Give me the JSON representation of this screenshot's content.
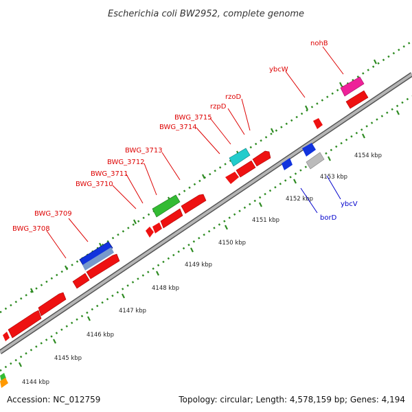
{
  "title": "Escherichia coli BW2952, complete genome",
  "footer": {
    "accession": "Accession: NC_012759",
    "summary": "Topology: circular; Length: 4,578,159 bp; Genes: 4,194"
  },
  "colors": {
    "label_forward": "#dd0000",
    "label_reverse": "#0000cc",
    "backbone": "#9a9a9a",
    "tick": "#2e8b22"
  },
  "kbp_labels": [
    "4144 kbp",
    "4145 kbp",
    "4146 kbp",
    "4147 kbp",
    "4148 kbp",
    "4149 kbp",
    "4150 kbp",
    "4151 kbp",
    "4152 kbp",
    "4153 kbp",
    "4154 kbp"
  ],
  "gene_labels": [
    {
      "text": "BWG_3708",
      "color": "#dd0000"
    },
    {
      "text": "BWG_3709",
      "color": "#dd0000"
    },
    {
      "text": "BWG_3710",
      "color": "#dd0000"
    },
    {
      "text": "BWG_3711",
      "color": "#dd0000"
    },
    {
      "text": "BWG_3712",
      "color": "#dd0000"
    },
    {
      "text": "BWG_3713",
      "color": "#dd0000"
    },
    {
      "text": "BWG_3714",
      "color": "#dd0000"
    },
    {
      "text": "BWG_3715",
      "color": "#dd0000"
    },
    {
      "text": "rzpD",
      "color": "#dd0000"
    },
    {
      "text": "rzoD",
      "color": "#dd0000"
    },
    {
      "text": "ybcW",
      "color": "#dd0000"
    },
    {
      "text": "nohB",
      "color": "#dd0000"
    },
    {
      "text": "borD",
      "color": "#0000cc"
    },
    {
      "text": "ybcV",
      "color": "#0000cc"
    }
  ]
}
